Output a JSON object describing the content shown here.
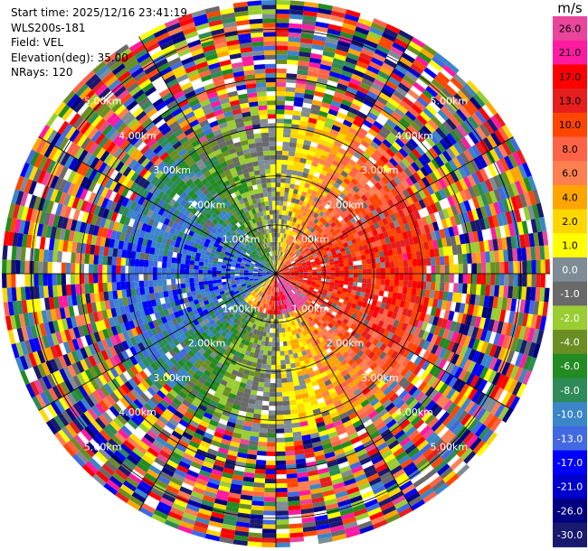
{
  "header": {
    "start_time": "Start time: 2025/12/16 23:41:19",
    "instrument": "WLS200s-181",
    "field": "Field: VEL",
    "elevation": "Elevation(deg): 35.00",
    "nrays": "NRays: 120"
  },
  "colorbar": {
    "unit": "m/s",
    "ticks": [
      "26.0",
      "21.0",
      "17.0",
      "13.0",
      "10.0",
      "8.0",
      "6.0",
      "4.0",
      "2.0",
      "1.0",
      "0.0",
      "-1.0",
      "-2.0",
      "-4.0",
      "-6.0",
      "-8.0",
      "-10.0",
      "-13.0",
      "-17.0",
      "-21.0",
      "-26.0",
      "-30.0"
    ],
    "colors": [
      "#e8459b",
      "#ff1aa0",
      "#ff0000",
      "#e61e1e",
      "#ff4500",
      "#ff6347",
      "#ff7f50",
      "#ffa500",
      "#ffd700",
      "#ffff00",
      "#7f8c95",
      "#696969",
      "#9acd32",
      "#6b8e23",
      "#228b22",
      "#2e8b57",
      "#3a86c8",
      "#4169e1",
      "#0000ff",
      "#0000cd",
      "#000080",
      "#191970"
    ]
  },
  "chart_data": {
    "type": "heatmap",
    "projection": "polar PPI",
    "field": "VEL",
    "unit": "m/s",
    "nrays": 120,
    "range_rings_km": [
      1.0,
      2.0,
      3.0,
      4.0,
      5.0
    ],
    "range_ring_labels": [
      "1.00km",
      "2.00km",
      "3.00km",
      "4.00km",
      "5.00km"
    ],
    "color_limits": [
      -30.0,
      26.0
    ],
    "azimuth_lines_deg": [
      0,
      30,
      60,
      90,
      120,
      150,
      180,
      210,
      240,
      270,
      300,
      330
    ],
    "pattern": {
      "near_field": "negative velocities (blue/green) to the west, positive (yellow/orange/red) to the east",
      "far_field": "noisy multicolored gates beyond about 3 km"
    }
  }
}
